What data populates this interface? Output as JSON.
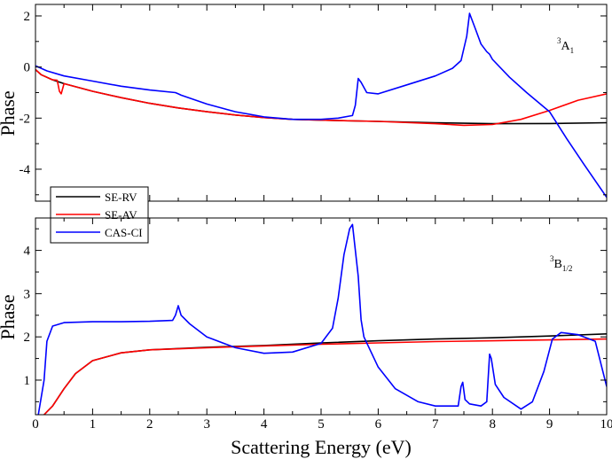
{
  "figure": {
    "xlabel": "Scattering Energy (eV)",
    "top_panel_label": {
      "sup": "3",
      "main": "A",
      "sub": "1"
    },
    "bottom_panel_label": {
      "sup": "3",
      "main": "B",
      "sub": "1/2"
    }
  },
  "chart_data": [
    {
      "type": "line",
      "panel": "top",
      "ylabel": "Phase",
      "xlim": [
        0,
        10
      ],
      "ylim": [
        -5.25,
        2.45
      ],
      "xticks": [
        0,
        1,
        2,
        3,
        4,
        5,
        6,
        7,
        8,
        9,
        10
      ],
      "yticks": [
        -4,
        -2,
        0,
        2
      ],
      "legend": {
        "placement": "bottom-left",
        "entries": [
          "SE-RV",
          "SE-AV",
          "CAS-CI"
        ]
      },
      "series": [
        {
          "name": "SE-RV",
          "color": "#000000",
          "points": [
            [
              0,
              -0.1
            ],
            [
              0.1,
              -0.3
            ],
            [
              0.3,
              -0.5
            ],
            [
              0.5,
              -0.65
            ],
            [
              1,
              -0.95
            ],
            [
              1.5,
              -1.2
            ],
            [
              2,
              -1.42
            ],
            [
              2.5,
              -1.6
            ],
            [
              3,
              -1.75
            ],
            [
              3.5,
              -1.88
            ],
            [
              4,
              -1.98
            ],
            [
              4.5,
              -2.05
            ],
            [
              5,
              -2.08
            ],
            [
              6,
              -2.13
            ],
            [
              7,
              -2.18
            ],
            [
              8,
              -2.22
            ],
            [
              9,
              -2.21
            ],
            [
              10,
              -2.18
            ]
          ]
        },
        {
          "name": "SE-AV",
          "color": "#ff0000",
          "points": [
            [
              0,
              -0.1
            ],
            [
              0.1,
              -0.3
            ],
            [
              0.3,
              -0.5
            ],
            [
              0.38,
              -0.52
            ],
            [
              0.42,
              -0.95
            ],
            [
              0.45,
              -1.05
            ],
            [
              0.5,
              -0.65
            ],
            [
              1,
              -0.95
            ],
            [
              1.5,
              -1.2
            ],
            [
              2,
              -1.42
            ],
            [
              2.5,
              -1.6
            ],
            [
              3,
              -1.75
            ],
            [
              3.5,
              -1.88
            ],
            [
              4,
              -1.98
            ],
            [
              4.5,
              -2.05
            ],
            [
              5,
              -2.08
            ],
            [
              6,
              -2.13
            ],
            [
              7,
              -2.22
            ],
            [
              7.5,
              -2.28
            ],
            [
              8,
              -2.25
            ],
            [
              8.5,
              -2.05
            ],
            [
              9,
              -1.7
            ],
            [
              9.5,
              -1.3
            ],
            [
              10,
              -1.05
            ]
          ]
        },
        {
          "name": "CAS-CI",
          "color": "#0000ff",
          "points": [
            [
              0,
              0.05
            ],
            [
              0.2,
              -0.15
            ],
            [
              0.5,
              -0.35
            ],
            [
              1,
              -0.55
            ],
            [
              1.5,
              -0.75
            ],
            [
              2,
              -0.9
            ],
            [
              2.45,
              -1.0
            ],
            [
              2.5,
              -1.05
            ],
            [
              2.55,
              -1.1
            ],
            [
              3,
              -1.45
            ],
            [
              3.5,
              -1.75
            ],
            [
              4,
              -1.95
            ],
            [
              4.5,
              -2.05
            ],
            [
              5,
              -2.05
            ],
            [
              5.3,
              -2.0
            ],
            [
              5.55,
              -1.9
            ],
            [
              5.6,
              -1.5
            ],
            [
              5.65,
              -0.45
            ],
            [
              5.7,
              -0.6
            ],
            [
              5.8,
              -1.0
            ],
            [
              6,
              -1.05
            ],
            [
              6.5,
              -0.7
            ],
            [
              7,
              -0.35
            ],
            [
              7.3,
              -0.05
            ],
            [
              7.45,
              0.25
            ],
            [
              7.55,
              1.2
            ],
            [
              7.6,
              2.1
            ],
            [
              7.7,
              1.5
            ],
            [
              7.8,
              0.9
            ],
            [
              7.9,
              0.6
            ],
            [
              7.95,
              0.5
            ],
            [
              8.0,
              0.3
            ],
            [
              8.3,
              -0.4
            ],
            [
              8.6,
              -1.0
            ],
            [
              9,
              -1.75
            ],
            [
              9.3,
              -2.8
            ],
            [
              9.6,
              -3.8
            ],
            [
              10,
              -5.1
            ]
          ]
        }
      ]
    },
    {
      "type": "line",
      "panel": "bottom",
      "ylabel": "Phase",
      "xlim": [
        0,
        10
      ],
      "ylim": [
        0.2,
        4.75
      ],
      "xticks": [
        0,
        1,
        2,
        3,
        4,
        5,
        6,
        7,
        8,
        9,
        10
      ],
      "yticks": [
        1,
        2,
        3,
        4
      ],
      "series": [
        {
          "name": "SE-RV",
          "color": "#000000",
          "points": [
            [
              0.15,
              0.2
            ],
            [
              0.3,
              0.4
            ],
            [
              0.5,
              0.8
            ],
            [
              0.7,
              1.15
            ],
            [
              1,
              1.45
            ],
            [
              1.5,
              1.63
            ],
            [
              2,
              1.7
            ],
            [
              3,
              1.76
            ],
            [
              4,
              1.8
            ],
            [
              5,
              1.86
            ],
            [
              6,
              1.91
            ],
            [
              7,
              1.95
            ],
            [
              8,
              1.98
            ],
            [
              9,
              2.02
            ],
            [
              10,
              2.07
            ]
          ]
        },
        {
          "name": "SE-AV",
          "color": "#ff0000",
          "points": [
            [
              0.15,
              0.2
            ],
            [
              0.3,
              0.4
            ],
            [
              0.5,
              0.8
            ],
            [
              0.7,
              1.15
            ],
            [
              1,
              1.45
            ],
            [
              1.5,
              1.63
            ],
            [
              2,
              1.7
            ],
            [
              3,
              1.75
            ],
            [
              4,
              1.79
            ],
            [
              5,
              1.83
            ],
            [
              6,
              1.86
            ],
            [
              7,
              1.89
            ],
            [
              8,
              1.91
            ],
            [
              9,
              1.93
            ],
            [
              10,
              1.95
            ]
          ]
        },
        {
          "name": "CAS-CI",
          "color": "#0000ff",
          "points": [
            [
              0.05,
              0.2
            ],
            [
              0.15,
              1.0
            ],
            [
              0.2,
              1.9
            ],
            [
              0.3,
              2.25
            ],
            [
              0.5,
              2.33
            ],
            [
              1,
              2.35
            ],
            [
              1.5,
              2.35
            ],
            [
              2,
              2.36
            ],
            [
              2.4,
              2.38
            ],
            [
              2.45,
              2.5
            ],
            [
              2.5,
              2.72
            ],
            [
              2.55,
              2.5
            ],
            [
              2.7,
              2.3
            ],
            [
              3,
              2.0
            ],
            [
              3.5,
              1.75
            ],
            [
              4,
              1.62
            ],
            [
              4.5,
              1.65
            ],
            [
              5,
              1.85
            ],
            [
              5.2,
              2.2
            ],
            [
              5.3,
              2.9
            ],
            [
              5.4,
              3.9
            ],
            [
              5.5,
              4.5
            ],
            [
              5.55,
              4.6
            ],
            [
              5.65,
              3.4
            ],
            [
              5.7,
              2.4
            ],
            [
              5.75,
              2.0
            ],
            [
              6,
              1.3
            ],
            [
              6.3,
              0.8
            ],
            [
              6.7,
              0.5
            ],
            [
              7,
              0.4
            ],
            [
              7.4,
              0.4
            ],
            [
              7.45,
              0.85
            ],
            [
              7.48,
              0.95
            ],
            [
              7.52,
              0.55
            ],
            [
              7.6,
              0.45
            ],
            [
              7.8,
              0.4
            ],
            [
              7.9,
              0.5
            ],
            [
              7.95,
              1.6
            ],
            [
              7.98,
              1.5
            ],
            [
              8.05,
              0.9
            ],
            [
              8.2,
              0.6
            ],
            [
              8.5,
              0.33
            ],
            [
              8.7,
              0.5
            ],
            [
              8.9,
              1.2
            ],
            [
              9.05,
              1.95
            ],
            [
              9.2,
              2.1
            ],
            [
              9.5,
              2.05
            ],
            [
              9.8,
              1.9
            ],
            [
              10,
              0.85
            ]
          ]
        }
      ]
    }
  ]
}
